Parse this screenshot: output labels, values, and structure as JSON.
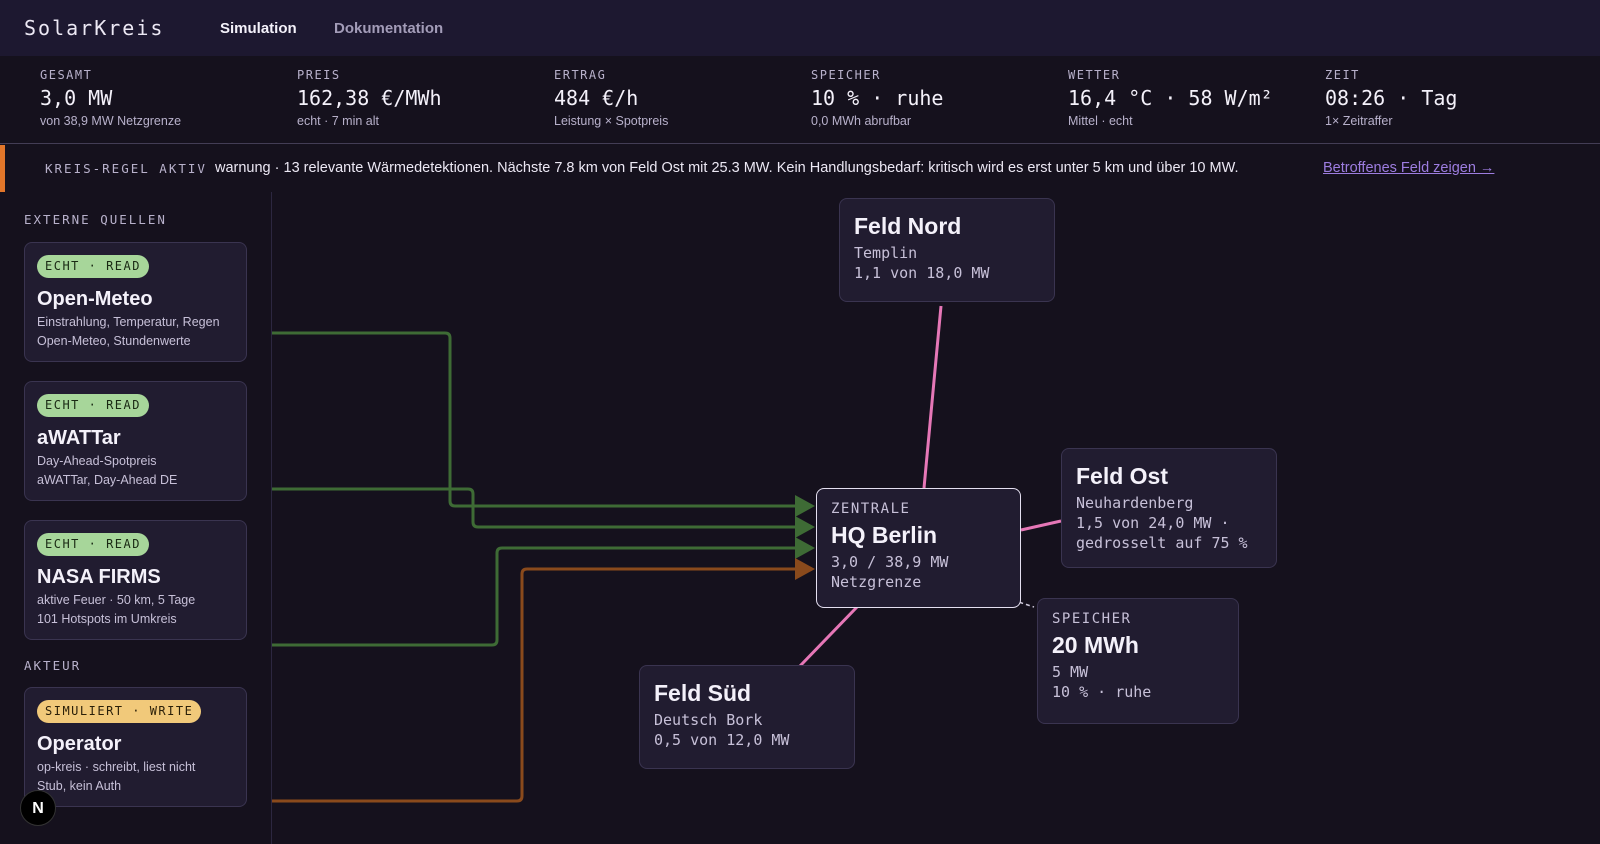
{
  "app": {
    "brand": "SolarKreis",
    "nav": [
      {
        "label": "Simulation",
        "active": true
      },
      {
        "label": "Dokumentation",
        "active": false
      }
    ]
  },
  "stats": [
    {
      "label": "GESAMT",
      "value": "3,0 MW",
      "sub": "von 38,9 MW Netzgrenze"
    },
    {
      "label": "PREIS",
      "value": "162,38 €/MWh",
      "sub": "echt · 7 min alt"
    },
    {
      "label": "ERTRAG",
      "value": "484 €/h",
      "sub": "Leistung × Spotpreis"
    },
    {
      "label": "SPEICHER",
      "value": "10 % · ruhe",
      "sub": "0,0 MWh abrufbar"
    },
    {
      "label": "WETTER",
      "value": "16,4 °C · 58 W/m²",
      "sub": "Mittel · echt"
    },
    {
      "label": "ZEIT",
      "value": "08:26 · Tag",
      "sub": "1× Zeitraffer"
    }
  ],
  "alert": {
    "tag": "KREIS-REGEL AKTIV",
    "message": "warnung · 13 relevante Wärmedetektionen. Nächste 7.8 km von Feld Ost mit 25.3 MW. Kein Handlungsbedarf: kritisch wird es erst unter 5 km und über 10 MW.",
    "link": "Betroffenes Feld zeigen →",
    "accent": "#e2762a"
  },
  "sidebar": {
    "sources_title": "EXTERNE QUELLEN",
    "actor_title": "AKTEUR",
    "sources": [
      {
        "badge": "ECHT · READ",
        "title": "Open-Meteo",
        "line1": "Einstrahlung, Temperatur, Regen",
        "line2": "Open-Meteo, Stundenwerte"
      },
      {
        "badge": "ECHT · READ",
        "title": "aWATTar",
        "line1": "Day-Ahead-Spotpreis",
        "line2": "aWATTar, Day-Ahead DE"
      },
      {
        "badge": "ECHT · READ",
        "title": "NASA FIRMS",
        "line1": "aktive Feuer · 50 km, 5 Tage",
        "line2": "101 Hotspots im Umkreis"
      }
    ],
    "actor": {
      "badge": "SIMULIERT · WRITE",
      "title": "Operator",
      "line1": "op-kreis · schreibt, liest nicht",
      "line2": "Stub, kein Auth"
    },
    "avatar": "N"
  },
  "graph": {
    "central": {
      "caption": "ZENTRALE",
      "title": "HQ Berlin",
      "line1": "3,0 / 38,9 MW",
      "line2": "Netzgrenze"
    },
    "nord": {
      "title": "Feld Nord",
      "line1": "Templin",
      "line2": "1,1 von 18,0 MW"
    },
    "ost": {
      "title": "Feld Ost",
      "line1": "Neuhardenberg",
      "line2": "1,5 von 24,0 MW ·",
      "line3": "gedrosselt auf 75 %"
    },
    "sued": {
      "title": "Feld Süd",
      "line1": "Deutsch Bork",
      "line2": "0,5 von 12,0 MW"
    },
    "speicher": {
      "caption": "SPEICHER",
      "title": "20 MWh",
      "line1": "5 MW",
      "line2": "10 % · ruhe"
    },
    "colors": {
      "read_link": "#3e6b35",
      "write_link": "#8a4a1c",
      "field_link": "#e677b7",
      "storage_link": "#cfcadc"
    }
  }
}
